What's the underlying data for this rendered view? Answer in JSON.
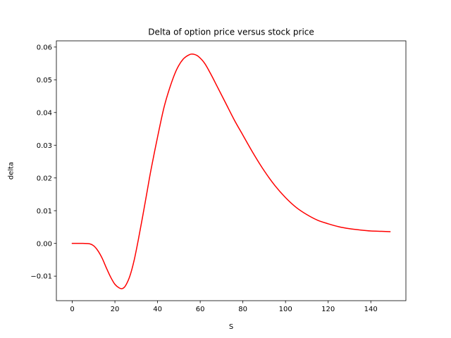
{
  "chart_data": {
    "type": "line",
    "title": "Delta of option price versus stock price",
    "xlabel": "S",
    "ylabel": "delta",
    "xlim": [
      -7.45,
      156.45
    ],
    "ylim": [
      -0.0175,
      0.0619
    ],
    "grid": false,
    "x_ticks": [
      0,
      20,
      40,
      60,
      80,
      100,
      120,
      140
    ],
    "x_tick_labels": [
      "0",
      "20",
      "40",
      "60",
      "80",
      "100",
      "120",
      "140"
    ],
    "y_ticks": [
      -0.01,
      0.0,
      0.01,
      0.02,
      0.03,
      0.04,
      0.05,
      0.06
    ],
    "y_tick_labels": [
      "−0.01",
      "0.00",
      "0.01",
      "0.02",
      "0.03",
      "0.04",
      "0.05",
      "0.06"
    ],
    "series": [
      {
        "color": "#ff0000",
        "x": [
          0,
          5,
          8,
          10,
          12,
          14,
          16,
          18,
          20,
          22,
          23.5,
          25,
          27,
          29,
          31,
          33,
          35,
          37,
          40,
          43,
          46,
          49,
          52,
          55,
          57,
          59,
          62,
          65,
          68,
          72,
          76,
          80,
          85,
          90,
          95,
          100,
          105,
          110,
          115,
          120,
          125,
          130,
          135,
          140,
          145,
          149
        ],
        "y": [
          0.0,
          0.0,
          -0.0001,
          -0.0007,
          -0.0022,
          -0.0045,
          -0.0075,
          -0.0103,
          -0.0125,
          -0.0136,
          -0.0138,
          -0.0129,
          -0.01,
          -0.0052,
          0.0012,
          0.0082,
          0.0155,
          0.0228,
          0.0325,
          0.0415,
          0.0481,
          0.0532,
          0.0563,
          0.0577,
          0.0578,
          0.0572,
          0.0551,
          0.0517,
          0.0479,
          0.0428,
          0.0377,
          0.0331,
          0.0274,
          0.0222,
          0.0177,
          0.014,
          0.011,
          0.0088,
          0.0071,
          0.006,
          0.0051,
          0.0045,
          0.0041,
          0.0038,
          0.0037,
          0.0036
        ]
      }
    ]
  }
}
